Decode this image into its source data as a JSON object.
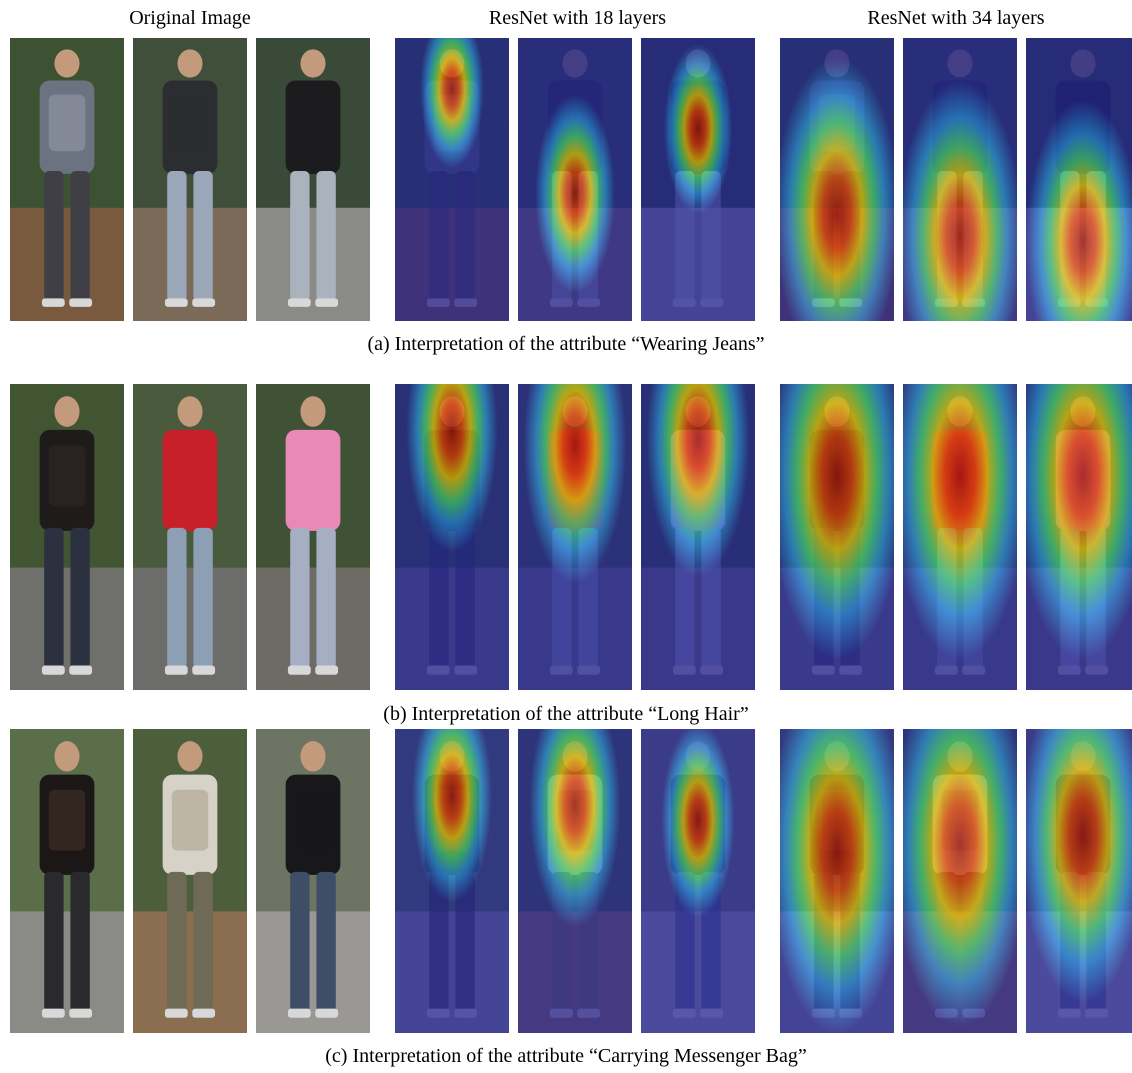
{
  "column_headers": [
    "Original Image",
    "ResNet with 18 layers",
    "ResNet with 34 layers"
  ],
  "captions": [
    "(a) Interpretation of the attribute “Wearing Jeans”",
    "(b) Interpretation of the attribute “Long Hair”",
    "(c) Interpretation of the attribute “Carrying Messenger Bag”"
  ],
  "photos": {
    "a": [
      {
        "top": "#6b7280",
        "torso": "#8a8f9c",
        "legs": "#3f3f45",
        "bg": "#3d5233",
        "ground": "#7a5a3e"
      },
      {
        "top": "#2b2d31",
        "torso": "#2b2d31",
        "legs": "#9aa7b8",
        "bg": "#3f4f3a",
        "ground": "#7c6a58"
      },
      {
        "top": "#1c1c1f",
        "torso": "#1c1c1f",
        "legs": "#a9b2bd",
        "bg": "#3a4a38",
        "ground": "#8a8a86"
      }
    ],
    "b": [
      {
        "top": "#1f1b1b",
        "torso": "#2a2422",
        "legs": "#2c3140",
        "bg": "#425533",
        "ground": "#6f6f6b"
      },
      {
        "top": "#c8202a",
        "torso": "#c8202a",
        "legs": "#8d9fb4",
        "bg": "#4a5a3c",
        "ground": "#6c6c6a"
      },
      {
        "top": "#e98ab6",
        "torso": "#e98ab6",
        "legs": "#a5aec3",
        "bg": "#3f5236",
        "ground": "#6e6a64"
      }
    ],
    "c": [
      {
        "top": "#1b1716",
        "torso": "#3a2a24",
        "legs": "#2a2a2e",
        "bg": "#5a6e4a",
        "ground": "#8a8a86"
      },
      {
        "top": "#d7d2c8",
        "torso": "#b6ae9c",
        "legs": "#6f6a55",
        "bg": "#4c5e3c",
        "ground": "#8b6d4f"
      },
      {
        "top": "#18181a",
        "torso": "#18181a",
        "legs": "#3e4e66",
        "bg": "#6d7464",
        "ground": "#9a9894"
      }
    ]
  }
}
